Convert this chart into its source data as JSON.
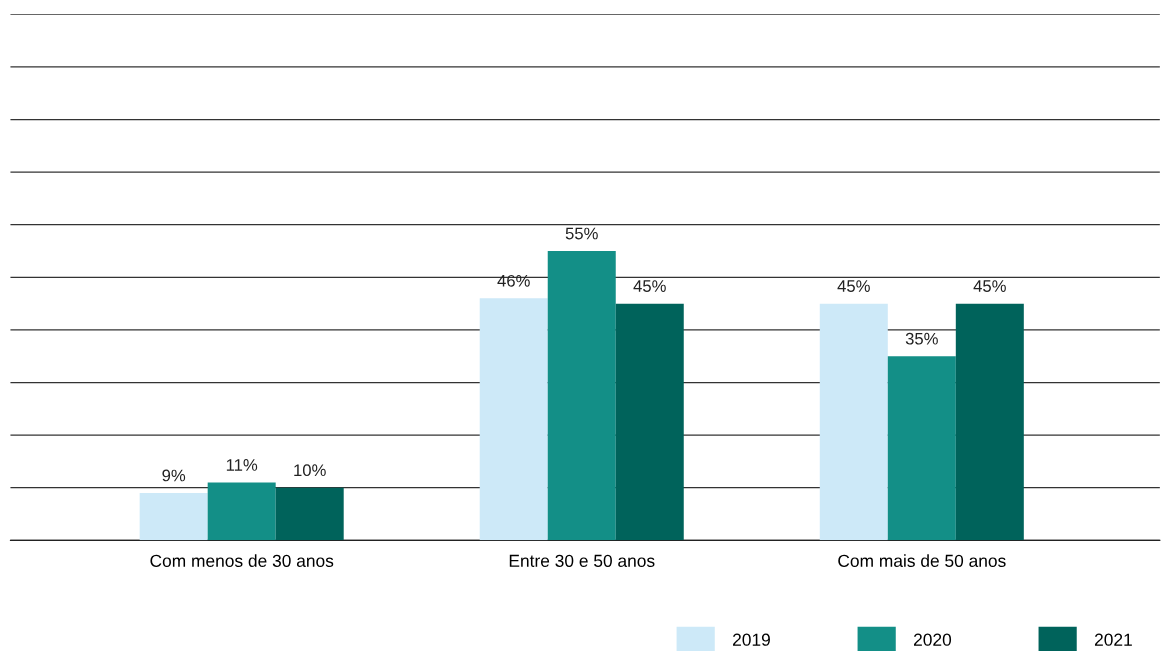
{
  "chart_data": {
    "type": "bar",
    "categories": [
      "Com menos de 30 anos",
      "Entre 30 e 50 anos",
      "Com mais de 50 anos"
    ],
    "series": [
      {
        "name": "2019",
        "color": "#cde9f8",
        "values": [
          9,
          46,
          45
        ],
        "value_labels": [
          "9%",
          "46%",
          "45%"
        ]
      },
      {
        "name": "2020",
        "color": "#138f87",
        "values": [
          11,
          55,
          35
        ],
        "value_labels": [
          "11%",
          "55%",
          "35%"
        ]
      },
      {
        "name": "2021",
        "color": "#00635b",
        "values": [
          10,
          45,
          45
        ],
        "value_labels": [
          "10%",
          "45%",
          "45%"
        ]
      }
    ],
    "ylim": [
      0,
      100
    ],
    "yticks": [
      {
        "value": 0,
        "label": null
      },
      {
        "value": 10,
        "label": null
      },
      {
        "value": 20,
        "label": null
      },
      {
        "value": 30,
        "label": null
      },
      {
        "value": 40,
        "label": null
      },
      {
        "value": 50,
        "label": null
      },
      {
        "value": 60,
        "label": null
      },
      {
        "value": 70,
        "label": null
      },
      {
        "value": 80,
        "label": null
      },
      {
        "value": 90,
        "label": null
      },
      {
        "value": 100,
        "label": null
      }
    ],
    "tick_labels": "x",
    "grid": "y",
    "legend": "bottom right"
  }
}
